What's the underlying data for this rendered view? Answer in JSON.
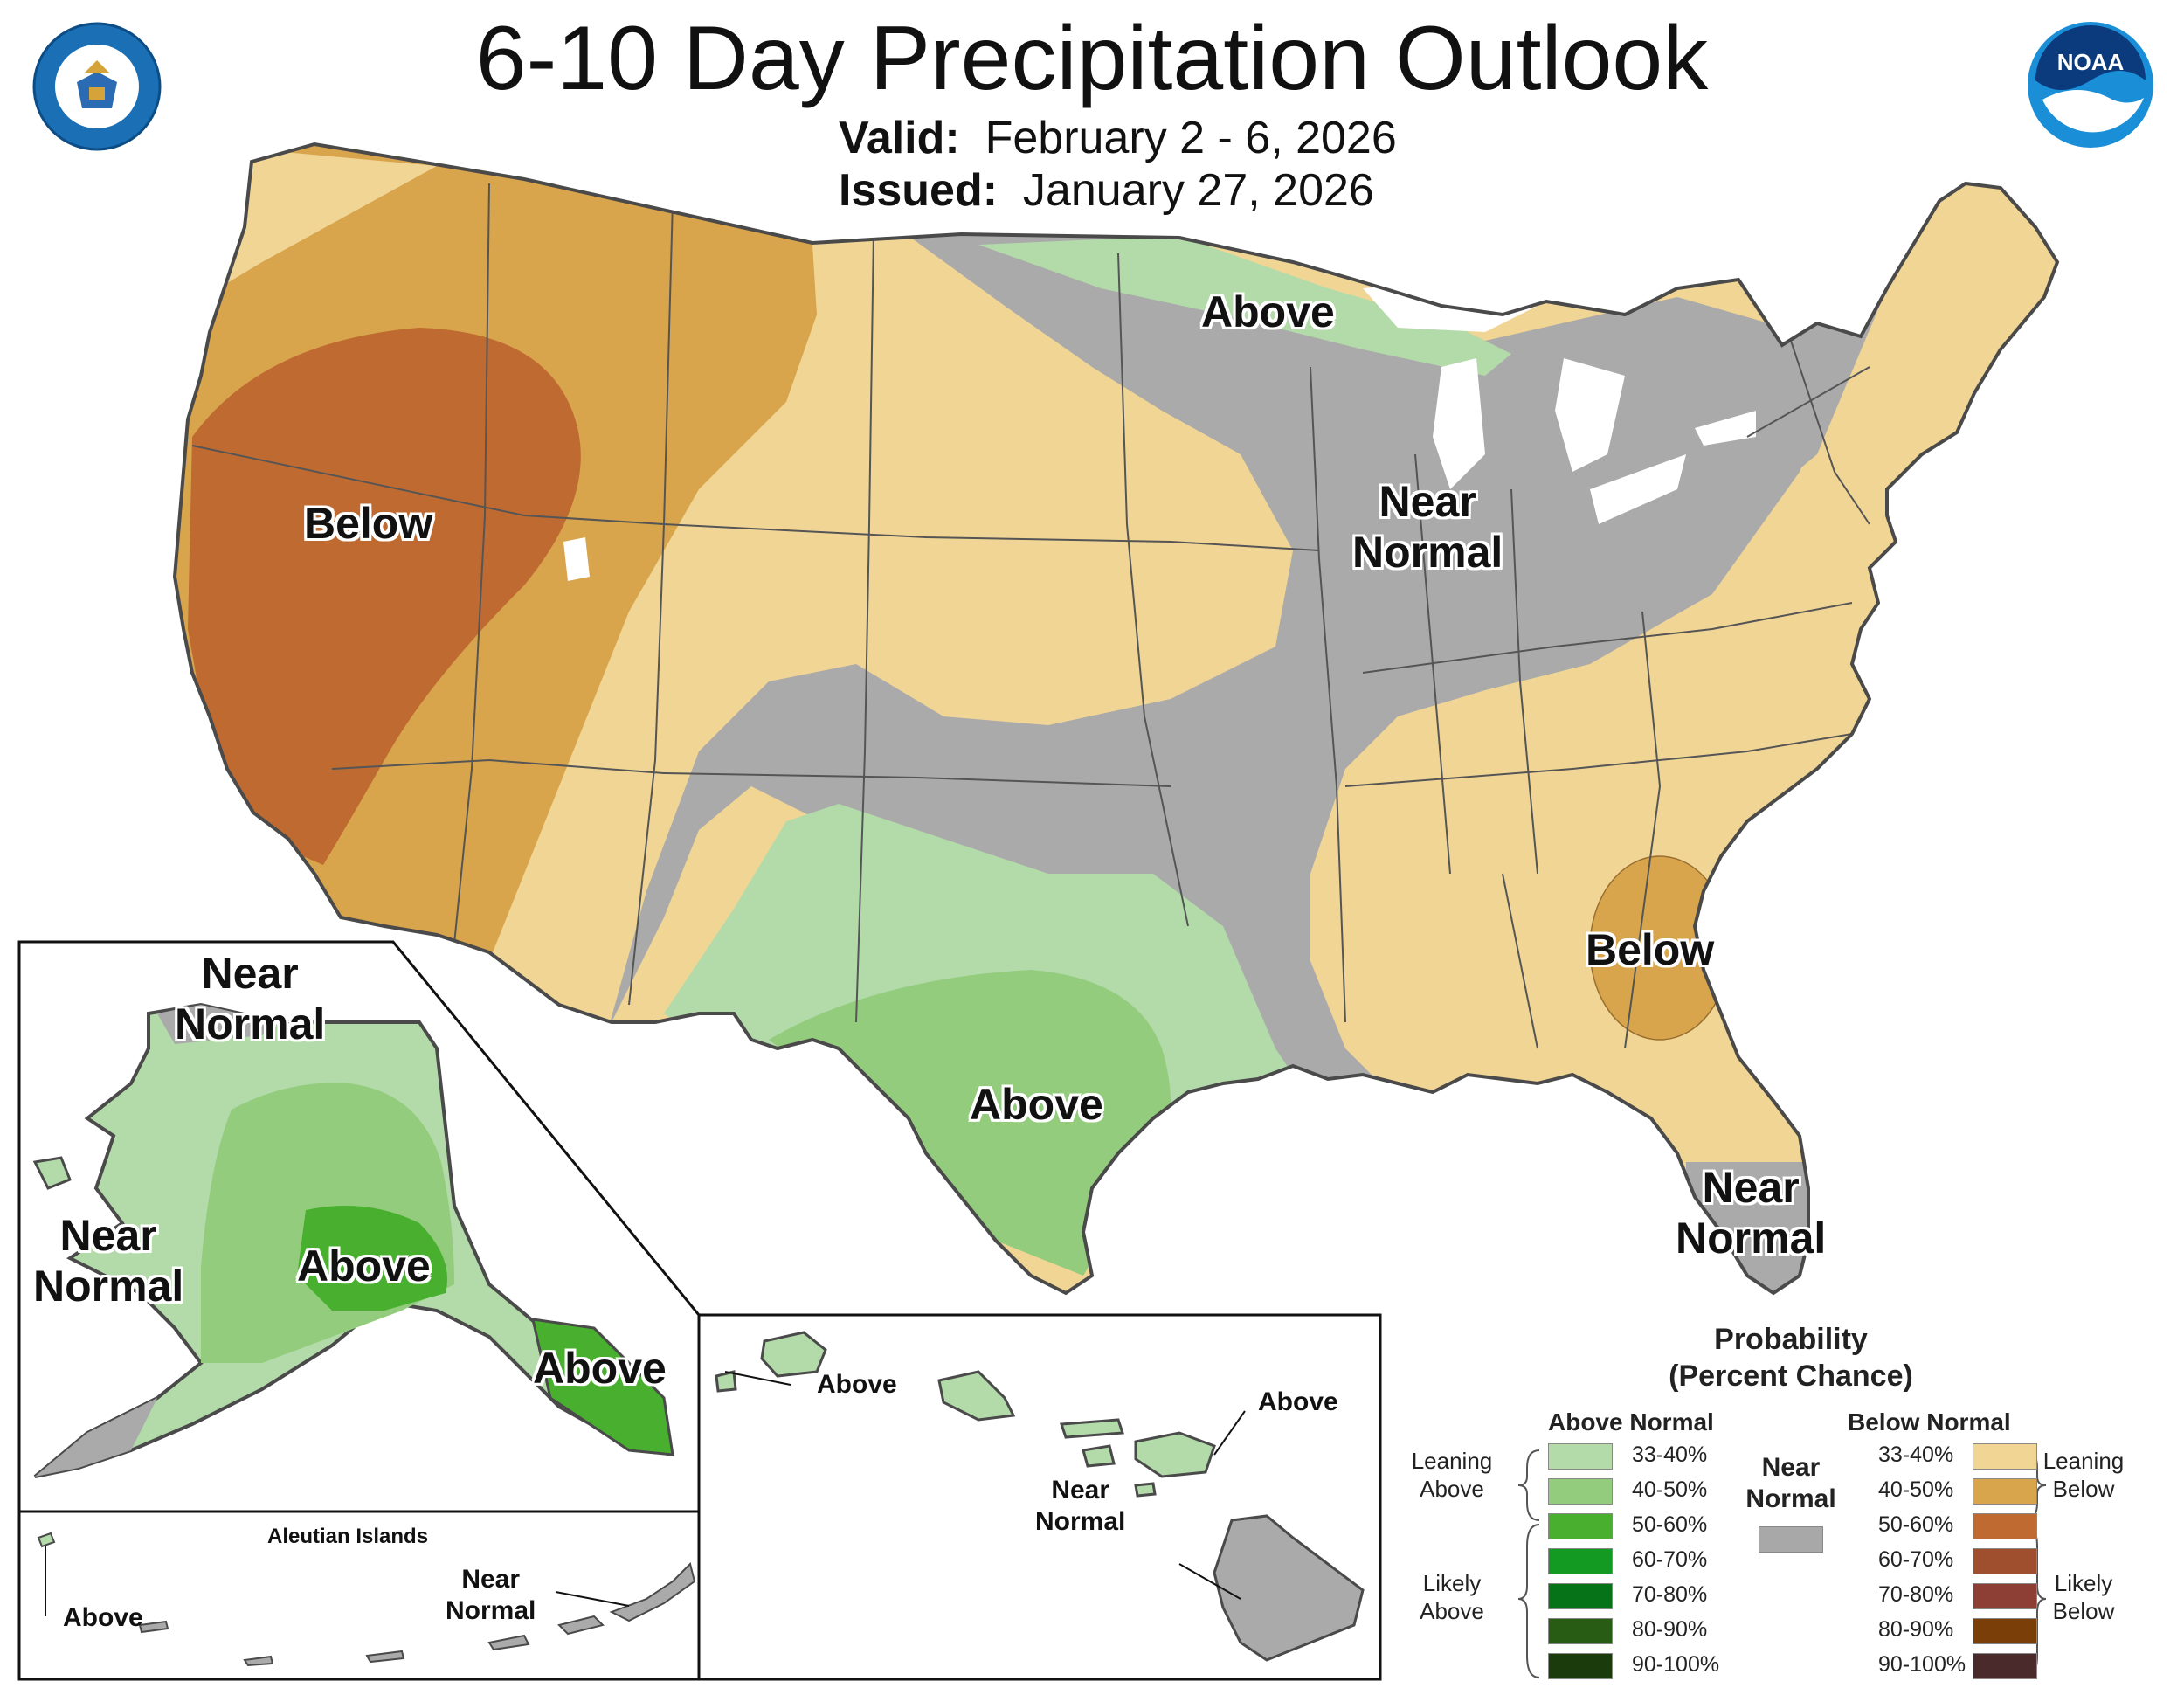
{
  "header": {
    "title": "6-10 Day Precipitation Outlook",
    "valid_label": "Valid:",
    "valid_value": "February 2 - 6, 2026",
    "issued_label": "Issued:",
    "issued_value": "January 27, 2026"
  },
  "logos": {
    "commerce": "department-of-commerce-seal",
    "noaa_text": "NOAA"
  },
  "map_labels": {
    "conus_above_north": "Above",
    "conus_near_normal_lines": [
      "Near",
      "Normal"
    ],
    "conus_below_west": "Below",
    "conus_above_texas": "Above",
    "conus_below_southeast": "Below",
    "florida_near_normal_lines": [
      "Near",
      "Normal"
    ],
    "alaska_near_north_lines": [
      "Near",
      "Normal"
    ],
    "alaska_near_west_lines": [
      "Near",
      "Normal"
    ],
    "alaska_above_central": "Above",
    "alaska_above_panhandle": "Above"
  },
  "aleutians": {
    "title": "Aleutian Islands",
    "above": "Above",
    "near_lines": [
      "Near",
      "Normal"
    ]
  },
  "hawaii": {
    "above_west": "Above",
    "above_east": "Above",
    "near_lines": [
      "Near",
      "Normal"
    ]
  },
  "legend": {
    "title_lines": [
      "Probability",
      "(Percent Chance)"
    ],
    "above_header": "Above Normal",
    "below_header": "Below Normal",
    "near_lines": [
      "Near",
      "Normal"
    ],
    "leaning_above_lines": [
      "Leaning",
      "Above"
    ],
    "likely_above_lines": [
      "Likely",
      "Above"
    ],
    "leaning_below_lines": [
      "Leaning",
      "Below"
    ],
    "likely_below_lines": [
      "Likely",
      "Below"
    ],
    "above_categories": [
      {
        "label": "33-40%",
        "color": "#b3dbaa"
      },
      {
        "label": "40-50%",
        "color": "#93cc7c"
      },
      {
        "label": "50-60%",
        "color": "#48b02e"
      },
      {
        "label": "60-70%",
        "color": "#139a23"
      },
      {
        "label": "70-80%",
        "color": "#077318"
      },
      {
        "label": "80-90%",
        "color": "#285b13"
      },
      {
        "label": "90-100%",
        "color": "#1c3b0c"
      }
    ],
    "below_categories": [
      {
        "label": "33-40%",
        "color": "#f0d595"
      },
      {
        "label": "40-50%",
        "color": "#d8a44c"
      },
      {
        "label": "50-60%",
        "color": "#bf6a30"
      },
      {
        "label": "60-70%",
        "color": "#a04f2e"
      },
      {
        "label": "70-80%",
        "color": "#8e3f35"
      },
      {
        "label": "80-90%",
        "color": "#7a3e08"
      },
      {
        "label": "90-100%",
        "color": "#4a2a2a"
      }
    ],
    "near_color": "#a8a8a8"
  },
  "colors": {
    "near_normal": "#aaaaaa",
    "water_white": "#ffffff",
    "border": "#4a4a4a"
  }
}
